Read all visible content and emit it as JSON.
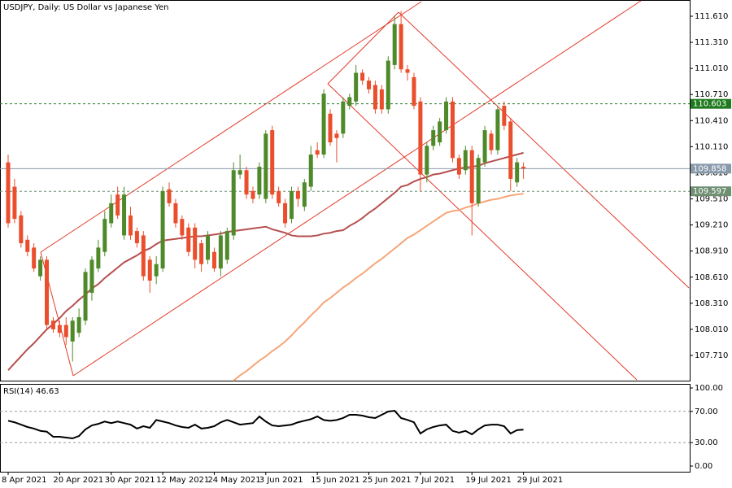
{
  "chart_data": [
    {
      "type": "candlestick",
      "title": "USDJPY, Daily:  US Dollar vs Japanese Yen",
      "categories": [
        "8 Apr 2021",
        null,
        null,
        null,
        null,
        null,
        null,
        null,
        "20 Apr 2021",
        null,
        null,
        null,
        null,
        null,
        null,
        null,
        "30 Apr 2021",
        null,
        null,
        null,
        null,
        null,
        null,
        null,
        "12 May 2021",
        null,
        null,
        null,
        null,
        null,
        null,
        null,
        "24 May 2021",
        null,
        null,
        null,
        null,
        null,
        null,
        null,
        "3 Jun 2021",
        null,
        null,
        null,
        null,
        null,
        null,
        null,
        "15 Jun 2021",
        null,
        null,
        null,
        null,
        null,
        null,
        null,
        "25 Jun 2021",
        null,
        null,
        null,
        null,
        null,
        null,
        null,
        "7 Jul 2021",
        null,
        null,
        null,
        null,
        null,
        null,
        null,
        "19 Jul 2021",
        null,
        null,
        null,
        null,
        null,
        null,
        null,
        "29 Jul 2021"
      ],
      "open": [
        109.93,
        109.65,
        109.32,
        109.04,
        108.95,
        108.62,
        108.81,
        108.11,
        108.06,
        108.06,
        107.87,
        107.97,
        108.11,
        108.43,
        108.71,
        108.9,
        109.23,
        109.56,
        109.09,
        109.32,
        109.14,
        109.09,
        108.81,
        108.62,
        108.71,
        109.62,
        109.46,
        109.28,
        109.18,
        109.18,
        109.0,
        108.81,
        108.9,
        108.71,
        108.81,
        109.09,
        109.79,
        109.84,
        109.6,
        109.56,
        109.51,
        110.3,
        109.6,
        109.46,
        109.28,
        109.6,
        109.42,
        109.65,
        110.07,
        110.02,
        110.49,
        110.26,
        110.26,
        110.58,
        110.63,
        110.96,
        110.87,
        110.82,
        110.77,
        110.54,
        111.05,
        111.52,
        111.0,
        110.91,
        110.63,
        109.79,
        110.12,
        110.16,
        110.3,
        110.63,
        109.98,
        109.84,
        110.07,
        109.46,
        109.93,
        110.26,
        110.07,
        110.58,
        110.4,
        109.7,
        109.88
      ],
      "high": [
        110.02,
        109.74,
        109.37,
        109.09,
        109.0,
        108.85,
        108.85,
        108.15,
        108.11,
        108.15,
        108.15,
        108.25,
        108.71,
        108.85,
        109.04,
        109.37,
        109.56,
        109.65,
        109.65,
        109.42,
        109.18,
        109.14,
        108.85,
        108.85,
        109.65,
        109.7,
        109.51,
        109.32,
        109.23,
        109.23,
        109.04,
        109.14,
        108.95,
        109.14,
        109.18,
        109.93,
        110.02,
        109.88,
        109.65,
        109.93,
        110.3,
        110.35,
        109.65,
        109.51,
        109.65,
        109.65,
        109.74,
        110.12,
        110.16,
        110.77,
        110.54,
        110.3,
        110.68,
        110.72,
        111.05,
        111.0,
        110.91,
        110.87,
        110.82,
        111.15,
        111.62,
        111.67,
        111.05,
        110.96,
        110.68,
        110.16,
        110.35,
        110.44,
        110.68,
        110.68,
        110.02,
        110.12,
        110.12,
        110.02,
        110.35,
        110.3,
        110.58,
        110.63,
        110.44,
        109.98,
        109.93
      ],
      "low": [
        109.18,
        109.23,
        108.95,
        108.85,
        108.67,
        108.57,
        108.01,
        107.97,
        107.92,
        107.83,
        107.64,
        107.92,
        108.06,
        108.34,
        108.67,
        108.85,
        109.18,
        109.28,
        109.04,
        109.04,
        108.95,
        108.57,
        108.43,
        108.53,
        108.67,
        109.42,
        109.18,
        109.04,
        108.85,
        108.71,
        108.67,
        108.76,
        108.67,
        108.62,
        108.76,
        109.04,
        109.74,
        109.51,
        109.46,
        109.51,
        109.46,
        109.51,
        109.42,
        109.18,
        109.23,
        109.42,
        109.37,
        109.6,
        109.98,
        109.98,
        110.12,
        109.93,
        110.21,
        110.54,
        110.58,
        110.82,
        110.72,
        110.49,
        110.49,
        110.49,
        111.0,
        110.96,
        110.87,
        110.54,
        109.6,
        109.7,
        110.07,
        110.12,
        110.26,
        109.93,
        109.74,
        109.79,
        109.09,
        109.42,
        109.88,
        110.02,
        110.02,
        110.3,
        109.6,
        109.65,
        109.74
      ],
      "close": [
        109.23,
        109.28,
        109.0,
        108.9,
        108.71,
        108.81,
        108.06,
        108.01,
        107.97,
        107.92,
        108.11,
        108.15,
        108.67,
        108.81,
        108.95,
        109.28,
        109.46,
        109.32,
        109.56,
        109.09,
        109.0,
        108.62,
        108.57,
        108.76,
        109.6,
        109.46,
        109.23,
        109.09,
        108.9,
        108.81,
        108.76,
        109.09,
        108.71,
        109.09,
        109.14,
        109.84,
        109.84,
        109.56,
        109.51,
        109.88,
        110.26,
        109.56,
        109.46,
        109.23,
        109.6,
        109.51,
        109.7,
        110.02,
        110.02,
        110.72,
        110.16,
        110.21,
        110.63,
        110.68,
        110.96,
        110.87,
        110.77,
        110.54,
        110.54,
        111.1,
        111.52,
        111.0,
        110.96,
        110.58,
        109.79,
        110.12,
        110.3,
        110.4,
        110.63,
        109.98,
        109.79,
        110.07,
        109.46,
        109.98,
        110.3,
        110.07,
        110.54,
        110.35,
        109.74,
        109.93,
        109.86
      ],
      "up_color": "#4f8a2a",
      "down_color": "#ea4e2c",
      "overlays": [
        {
          "color": "#b5504f",
          "values": [
            107.54,
            107.62,
            107.7,
            107.78,
            107.85,
            107.93,
            108.01,
            108.07,
            108.14,
            108.22,
            108.28,
            108.35,
            108.41,
            108.48,
            108.53,
            108.6,
            108.66,
            108.72,
            108.78,
            108.82,
            108.86,
            108.91,
            108.94,
            108.99,
            109.03,
            109.04,
            109.05,
            109.06,
            109.07,
            109.08,
            109.08,
            109.09,
            109.1,
            109.11,
            109.13,
            109.14,
            109.15,
            109.16,
            109.17,
            109.18,
            109.19,
            109.16,
            109.14,
            109.12,
            109.09,
            109.08,
            109.08,
            109.08,
            109.09,
            109.11,
            109.12,
            109.14,
            109.15,
            109.2,
            109.24,
            109.29,
            109.35,
            109.4,
            109.46,
            109.52,
            109.58,
            109.65,
            109.67,
            109.71,
            109.74,
            109.76,
            109.79,
            109.8,
            109.82,
            109.84,
            109.86,
            109.87,
            109.88,
            109.89,
            109.92,
            109.94,
            109.96,
            109.98,
            110.0,
            110.02,
            110.04
          ]
        },
        {
          "color": "#f5a679",
          "values": [
            null,
            null,
            null,
            null,
            null,
            null,
            null,
            null,
            null,
            null,
            null,
            null,
            null,
            null,
            null,
            null,
            null,
            null,
            null,
            null,
            null,
            null,
            null,
            null,
            null,
            null,
            null,
            null,
            null,
            null,
            null,
            null,
            null,
            null,
            null,
            107.42,
            107.48,
            107.53,
            107.59,
            107.65,
            107.7,
            107.76,
            107.81,
            107.87,
            107.94,
            108.02,
            108.09,
            108.17,
            108.24,
            108.32,
            108.37,
            108.43,
            108.49,
            108.54,
            108.6,
            108.65,
            108.71,
            108.77,
            108.82,
            108.88,
            108.94,
            109.0,
            109.06,
            109.1,
            109.15,
            109.2,
            109.25,
            109.3,
            109.35,
            109.37,
            109.38,
            109.41,
            109.43,
            109.46,
            109.48,
            109.5,
            109.51,
            109.53,
            109.55,
            109.56,
            109.57
          ]
        }
      ],
      "levels": [
        {
          "value": 110.603,
          "dashed": true,
          "color": "#1f7a1f"
        },
        {
          "value": 109.858,
          "dashed": false,
          "color": "#8899aa"
        },
        {
          "value": 109.597,
          "dashed": true,
          "color": "#6f8f73"
        }
      ],
      "ylim": [
        107.42,
        111.797
      ],
      "yticks": [
        {
          "value": 111.61,
          "label": "111.610"
        },
        {
          "value": 111.31,
          "label": "111.310"
        },
        {
          "value": 111.01,
          "label": "111.010"
        },
        {
          "value": 110.71,
          "label": "110.710"
        },
        {
          "value": 110.41,
          "label": "110.410"
        },
        {
          "value": 110.11,
          "label": "110.110"
        },
        {
          "value": 109.81,
          "label": "109.810"
        },
        {
          "value": 109.51,
          "label": "109.510"
        },
        {
          "value": 109.21,
          "label": "109.210"
        },
        {
          "value": 108.91,
          "label": "108.910"
        },
        {
          "value": 108.61,
          "label": "108.610"
        },
        {
          "value": 108.31,
          "label": "108.310"
        },
        {
          "value": 108.01,
          "label": "108.010"
        },
        {
          "value": 107.71,
          "label": "107.710"
        }
      ]
    },
    {
      "type": "line",
      "title": "RSI(14) 46.63",
      "color": "#000000",
      "values": [
        58,
        56,
        53,
        50,
        48,
        45,
        44,
        37.5,
        37.5,
        36.5,
        35.4,
        38.5,
        47,
        52,
        54,
        57,
        55,
        57,
        55,
        53,
        48,
        51,
        49,
        59,
        57,
        55,
        52,
        50,
        49,
        53,
        48,
        49,
        51,
        56,
        59,
        56,
        53,
        54,
        55,
        63.5,
        57,
        52,
        51,
        52,
        53,
        56,
        58,
        60,
        63.5,
        59,
        58,
        59,
        61.5,
        65.6,
        65.6,
        64.6,
        62.5,
        61.5,
        65.6,
        69.8,
        70.8,
        61.5,
        59,
        56,
        41.7,
        47,
        50,
        52,
        53,
        45,
        42.7,
        45,
        40.6,
        47,
        52,
        53,
        53,
        51,
        41.7,
        46,
        46.63
      ],
      "levels": [
        70,
        30
      ],
      "ylim": [
        -7.3,
        105.2
      ],
      "yticks": [
        {
          "value": 100,
          "label": "100.00"
        },
        {
          "value": 70,
          "label": "70.00"
        },
        {
          "value": 30,
          "label": "30.00"
        },
        {
          "value": 0,
          "label": "0.00"
        }
      ]
    }
  ]
}
